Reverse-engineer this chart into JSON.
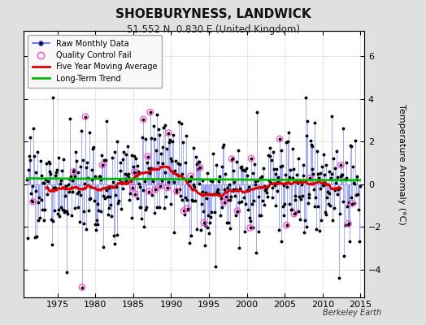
{
  "title": "SHOEBURYNESS, LANDWICK",
  "subtitle": "51.552 N, 0.830 E (United Kingdom)",
  "ylabel": "Temperature Anomaly (°C)",
  "credit": "Berkeley Earth",
  "xlim": [
    1970.5,
    2015.5
  ],
  "ylim": [
    -5.3,
    7.2
  ],
  "yticks": [
    -4,
    -2,
    0,
    2,
    4,
    6
  ],
  "xticks": [
    1975,
    1980,
    1985,
    1990,
    1995,
    2000,
    2005,
    2010,
    2015
  ],
  "bg_color": "#e0e0e0",
  "plot_bg_color": "#ffffff",
  "raw_line_color": "#5566ee",
  "raw_dot_color": "#000000",
  "qc_fail_color": "#ff44cc",
  "moving_avg_color": "#dd0000",
  "trend_color": "#00bb00",
  "seed": 17
}
